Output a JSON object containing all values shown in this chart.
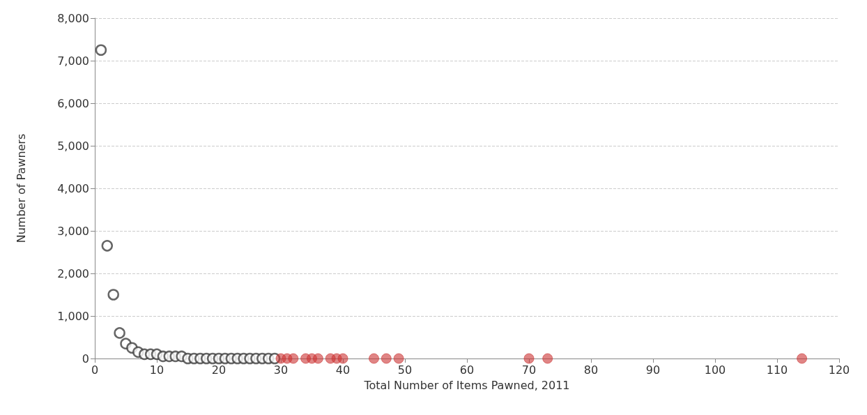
{
  "chart_data": {
    "type": "scatter",
    "xlabel": "Total Number of Items Pawned, 2011",
    "ylabel": "Number of Pawners",
    "marker": "circle",
    "grid": "y",
    "xlim": [
      0,
      120
    ],
    "xticks": [
      0,
      10,
      20,
      30,
      40,
      50,
      60,
      70,
      80,
      90,
      100,
      110,
      120
    ],
    "ylim": [
      0,
      8000
    ],
    "yticks": [
      0,
      {
        "value": 1000,
        "label": "1,000"
      },
      {
        "value": 2000,
        "label": "2,000"
      },
      {
        "value": 3000,
        "label": "3,000"
      },
      {
        "value": 4000,
        "label": "4,000"
      },
      {
        "value": 5000,
        "label": "5,000"
      },
      {
        "value": 6000,
        "label": "6,000"
      },
      {
        "value": 7000,
        "label": "7,000"
      },
      {
        "value": 8000,
        "label": "8,000"
      }
    ],
    "series": [
      {
        "color": "#404040",
        "x": [
          1,
          2,
          3,
          4,
          5,
          6,
          7,
          8,
          9,
          10,
          11,
          12,
          13,
          14,
          15,
          16,
          17,
          18,
          19,
          20,
          21,
          22,
          23,
          24,
          25,
          26,
          27,
          28,
          29
        ],
        "values": [
          7250,
          2650,
          1500,
          600,
          350,
          250,
          150,
          100,
          100,
          100,
          50,
          50,
          50,
          50,
          0,
          0,
          0,
          0,
          0,
          0,
          0,
          0,
          0,
          0,
          0,
          0,
          0,
          0,
          0
        ]
      },
      {
        "color": "#cc3333",
        "x": [
          30,
          31,
          32,
          34,
          35,
          36,
          38,
          39,
          40,
          45,
          47,
          49,
          70,
          73,
          114
        ],
        "values": [
          0,
          0,
          0,
          0,
          0,
          0,
          0,
          0,
          0,
          0,
          0,
          0,
          0,
          0,
          0
        ]
      }
    ]
  }
}
